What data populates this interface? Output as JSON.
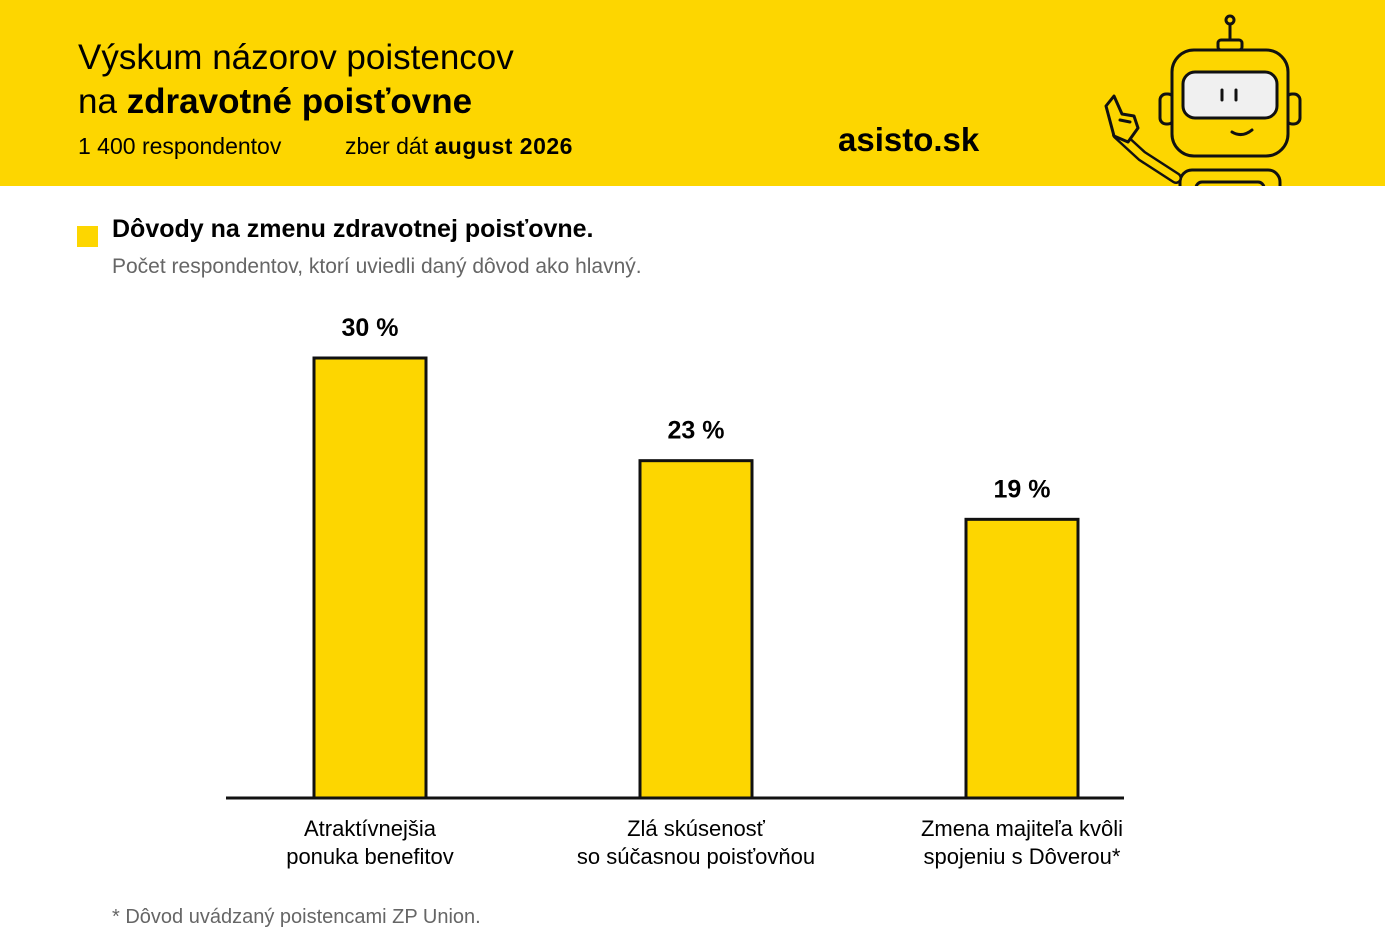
{
  "header": {
    "title_line1": "Výskum názorov poistencov",
    "title_line2_prefix": "na ",
    "title_line2_bold": "zdravotné poisťovne",
    "respondents": "1 400 respondentov",
    "collection_prefix": "zber dát ",
    "collection_date": "august 2026",
    "brand": "asisto.sk",
    "colors": {
      "accent": "#FDD600",
      "text": "#000000",
      "muted": "#666666"
    }
  },
  "section": {
    "title": "Dôvody na zmenu zdravotnej poisťovne.",
    "subtitle": "Počet respondentov, ktorí uviedli daný dôvod ako hlavný."
  },
  "chart_data": {
    "type": "bar",
    "categories": [
      [
        "Atraktívnejšia",
        "ponuka benefitov"
      ],
      [
        "Zlá skúsenosť",
        "so súčasnou poisťovňou"
      ],
      [
        "Zmena majiteľa kvôli",
        "spojeniu s Dôverou*"
      ]
    ],
    "values": [
      30,
      23,
      19
    ],
    "value_labels": [
      "30 %",
      "23 %",
      "19 %"
    ],
    "ylim": [
      0,
      30
    ],
    "grid": false,
    "legend": "none",
    "bar_color": "#FDD600"
  },
  "footnote": "* Dôvod uvádzaný poistencami ZP Union."
}
